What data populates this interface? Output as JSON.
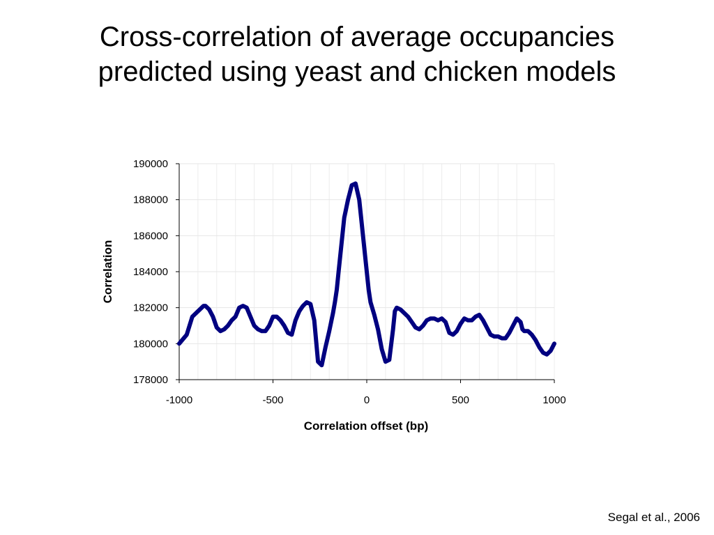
{
  "slide": {
    "title_line1": "Cross-correlation of average occupancies",
    "title_line2": "predicted using yeast and chicken models",
    "source": "Segal et al., 2006"
  },
  "chart_data": {
    "type": "line",
    "title": "",
    "xlabel": "Correlation offset (bp)",
    "ylabel": "Correlation",
    "xlim": [
      -1000,
      1000
    ],
    "ylim": [
      178000,
      190000
    ],
    "xticks": [
      -1000,
      -500,
      0,
      500,
      1000
    ],
    "yticks": [
      178000,
      180000,
      182000,
      184000,
      186000,
      188000,
      190000
    ],
    "grid": true,
    "line_color": "#000080",
    "series": [
      {
        "x": [
          -1000,
          -960,
          -930,
          -900,
          -870,
          -860,
          -840,
          -820,
          -800,
          -780,
          -760,
          -740,
          -720,
          -700,
          -680,
          -660,
          -640,
          -620,
          -600,
          -580,
          -560,
          -540,
          -520,
          -500,
          -480,
          -460,
          -440,
          -420,
          -400,
          -380,
          -360,
          -340,
          -320,
          -300,
          -280,
          -260,
          -240,
          -220,
          -200,
          -190,
          -180,
          -170,
          -160,
          -150,
          -140,
          -130,
          -120,
          -100,
          -80,
          -60,
          -40,
          -20,
          -10,
          0,
          10,
          20,
          40,
          60,
          80,
          100,
          120,
          140,
          150,
          160,
          180,
          200,
          220,
          240,
          260,
          280,
          300,
          320,
          340,
          360,
          380,
          400,
          420,
          440,
          460,
          480,
          500,
          520,
          540,
          560,
          580,
          600,
          620,
          640,
          660,
          680,
          700,
          720,
          740,
          760,
          780,
          800,
          820,
          830,
          840,
          860,
          880,
          900,
          920,
          940,
          960,
          980,
          1000
        ],
        "y": [
          180000,
          180500,
          181500,
          181800,
          182100,
          182100,
          181900,
          181500,
          180900,
          180700,
          180800,
          181000,
          181300,
          181500,
          182000,
          182100,
          182000,
          181500,
          181000,
          180800,
          180700,
          180700,
          181000,
          181500,
          181500,
          181300,
          181000,
          180600,
          180500,
          181300,
          181800,
          182100,
          182300,
          182200,
          181300,
          179000,
          178800,
          179800,
          180700,
          181200,
          181700,
          182300,
          183000,
          184000,
          185000,
          186000,
          187000,
          188000,
          188800,
          188900,
          188000,
          186000,
          185000,
          184000,
          183000,
          182300,
          181600,
          180800,
          179700,
          179000,
          179100,
          180800,
          181800,
          182000,
          181900,
          181700,
          181500,
          181200,
          180900,
          180800,
          181000,
          181300,
          181400,
          181400,
          181300,
          181400,
          181200,
          180600,
          180500,
          180700,
          181100,
          181400,
          181300,
          181300,
          181500,
          181600,
          181300,
          180900,
          180500,
          180400,
          180400,
          180300,
          180300,
          180600,
          181000,
          181400,
          181200,
          180800,
          180700,
          180700,
          180500,
          180200,
          179800,
          179500,
          179400,
          179600,
          180000
        ]
      }
    ]
  }
}
